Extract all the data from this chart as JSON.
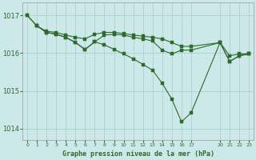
{
  "background_color": "#cce8e8",
  "grid_color": "#aacccc",
  "line_color": "#2d6a2d",
  "title": "Graphe pression niveau de la mer (hPa)",
  "ylim": [
    1013.7,
    1017.35
  ],
  "yticks": [
    1014,
    1015,
    1016,
    1017
  ],
  "series1_x": [
    0,
    1,
    2,
    3,
    4,
    5,
    6,
    7,
    8,
    9,
    10,
    11,
    12,
    13,
    14,
    15,
    16,
    17,
    20,
    21,
    22,
    23
  ],
  "series1_y": [
    1017.0,
    1016.72,
    1016.58,
    1016.55,
    1016.48,
    1016.42,
    1016.38,
    1016.5,
    1016.55,
    1016.55,
    1016.52,
    1016.48,
    1016.45,
    1016.42,
    1016.38,
    1016.28,
    1016.18,
    1016.18,
    1016.28,
    1015.93,
    1015.98,
    1015.98
  ],
  "series2_x": [
    1,
    2,
    3,
    4,
    5,
    6,
    7,
    8,
    9,
    10,
    11,
    12,
    13,
    14,
    15,
    16,
    17,
    20,
    21,
    22,
    23
  ],
  "series2_y": [
    1016.72,
    1016.55,
    1016.5,
    1016.42,
    1016.28,
    1016.1,
    1016.3,
    1016.48,
    1016.5,
    1016.48,
    1016.42,
    1016.38,
    1016.32,
    1016.08,
    1015.98,
    1016.08,
    1016.08,
    1016.28,
    1015.78,
    1015.93,
    1015.98
  ],
  "series3_x": [
    0,
    1,
    2,
    3,
    4,
    5,
    6,
    7,
    8,
    9,
    10,
    11,
    12,
    13,
    14,
    15,
    16,
    17,
    20,
    21,
    22,
    23
  ],
  "series3_y": [
    1017.0,
    1016.72,
    1016.55,
    1016.5,
    1016.42,
    1016.28,
    1016.1,
    1016.3,
    1016.22,
    1016.1,
    1015.98,
    1015.85,
    1015.7,
    1015.55,
    1015.2,
    1014.78,
    1014.18,
    1014.42,
    1016.28,
    1015.78,
    1015.93,
    1015.98
  ],
  "xtick_hours": [
    0,
    1,
    2,
    3,
    4,
    5,
    6,
    7,
    8,
    9,
    10,
    11,
    12,
    13,
    14,
    15,
    16,
    17,
    20,
    21,
    22,
    23
  ],
  "xtick_labels_all": [
    "0",
    "1",
    "2",
    "3",
    "4",
    "5",
    "6",
    "7",
    "8",
    "9",
    "10",
    "11",
    "12",
    "13",
    "14",
    "15",
    "16",
    "17",
    "20",
    "21",
    "22",
    "23"
  ]
}
